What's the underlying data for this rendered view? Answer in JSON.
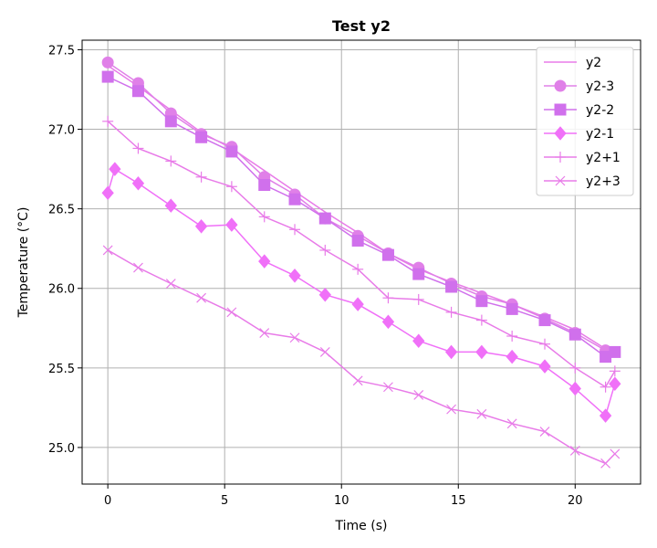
{
  "chart_data": {
    "type": "line",
    "title": "Test y2",
    "xlabel": "Time (s)",
    "ylabel": "Temperature (°C)",
    "xlim": [
      -1.1,
      22.8
    ],
    "ylim": [
      24.77,
      27.56
    ],
    "xticks": [
      0,
      5,
      10,
      15,
      20
    ],
    "yticks": [
      25.0,
      25.5,
      26.0,
      26.5,
      27.0,
      27.5
    ],
    "xtick_labels": [
      "0",
      "5",
      "10",
      "15",
      "20"
    ],
    "ytick_labels": [
      "25.0",
      "25.5",
      "26.0",
      "26.5",
      "27.0",
      "27.5"
    ],
    "grid": true,
    "legend_position": "upper right",
    "series": [
      {
        "name": "y2",
        "color": "#e87be8",
        "marker": "none",
        "x": [
          0.0,
          1.3,
          2.7,
          4.0,
          5.3,
          6.7,
          8.0,
          9.3,
          10.7,
          12.0,
          13.3,
          14.7,
          16.0,
          17.3,
          18.7,
          20.0,
          21.3,
          21.7
        ],
        "y": [
          27.4,
          27.27,
          27.12,
          26.98,
          26.88,
          26.74,
          26.61,
          26.48,
          26.35,
          26.22,
          26.12,
          26.04,
          25.97,
          25.9,
          25.82,
          25.74,
          25.62,
          25.61
        ]
      },
      {
        "name": "y2-3",
        "color": "#e080e8",
        "marker": "circle",
        "x": [
          0.0,
          1.3,
          2.7,
          4.0,
          5.3,
          6.7,
          8.0,
          9.3,
          10.7,
          12.0,
          13.3,
          14.7,
          16.0,
          17.3,
          18.7,
          20.0,
          21.3
        ],
        "y": [
          27.42,
          27.29,
          27.1,
          26.97,
          26.89,
          26.7,
          26.59,
          26.44,
          26.33,
          26.22,
          26.13,
          26.03,
          25.95,
          25.9,
          25.81,
          25.72,
          25.61
        ]
      },
      {
        "name": "y2-2",
        "color": "#d070ec",
        "marker": "square",
        "x": [
          0.0,
          1.3,
          2.7,
          4.0,
          5.3,
          6.7,
          8.0,
          9.3,
          10.7,
          12.0,
          13.3,
          14.7,
          16.0,
          17.3,
          18.7,
          20.0,
          21.3,
          21.7
        ],
        "y": [
          27.33,
          27.24,
          27.05,
          26.95,
          26.86,
          26.65,
          26.56,
          26.44,
          26.3,
          26.21,
          26.09,
          26.01,
          25.92,
          25.87,
          25.8,
          25.71,
          25.57,
          25.6
        ]
      },
      {
        "name": "y2-1",
        "color": "#f070f8",
        "marker": "diamond",
        "x": [
          0.0,
          0.3,
          1.3,
          2.7,
          4.0,
          5.3,
          6.7,
          8.0,
          9.3,
          10.7,
          12.0,
          13.3,
          14.7,
          16.0,
          17.3,
          18.7,
          20.0,
          21.3,
          21.7
        ],
        "y": [
          26.6,
          26.75,
          26.66,
          26.52,
          26.39,
          26.4,
          26.17,
          26.08,
          25.96,
          25.9,
          25.79,
          25.67,
          25.6,
          25.6,
          25.57,
          25.51,
          25.37,
          25.2,
          25.4
        ]
      },
      {
        "name": "y2+1",
        "color": "#e87be8",
        "marker": "plus",
        "x": [
          0.0,
          1.3,
          2.7,
          4.0,
          5.3,
          6.7,
          8.0,
          9.3,
          10.7,
          12.0,
          13.3,
          14.7,
          16.0,
          17.3,
          18.7,
          20.0,
          21.3,
          21.7
        ],
        "y": [
          27.05,
          26.88,
          26.8,
          26.7,
          26.64,
          26.45,
          26.37,
          26.24,
          26.12,
          25.94,
          25.93,
          25.85,
          25.8,
          25.7,
          25.65,
          25.5,
          25.38,
          25.48
        ]
      },
      {
        "name": "y2+3",
        "color": "#e87be8",
        "marker": "x",
        "x": [
          0.0,
          1.3,
          2.7,
          4.0,
          5.3,
          6.7,
          8.0,
          9.3,
          10.7,
          12.0,
          13.3,
          14.7,
          16.0,
          17.3,
          18.7,
          20.0,
          21.3,
          21.7
        ],
        "y": [
          26.24,
          26.13,
          26.03,
          25.94,
          25.85,
          25.72,
          25.69,
          25.6,
          25.42,
          25.38,
          25.33,
          25.24,
          25.21,
          25.15,
          25.1,
          24.98,
          24.9,
          24.96
        ]
      }
    ]
  }
}
